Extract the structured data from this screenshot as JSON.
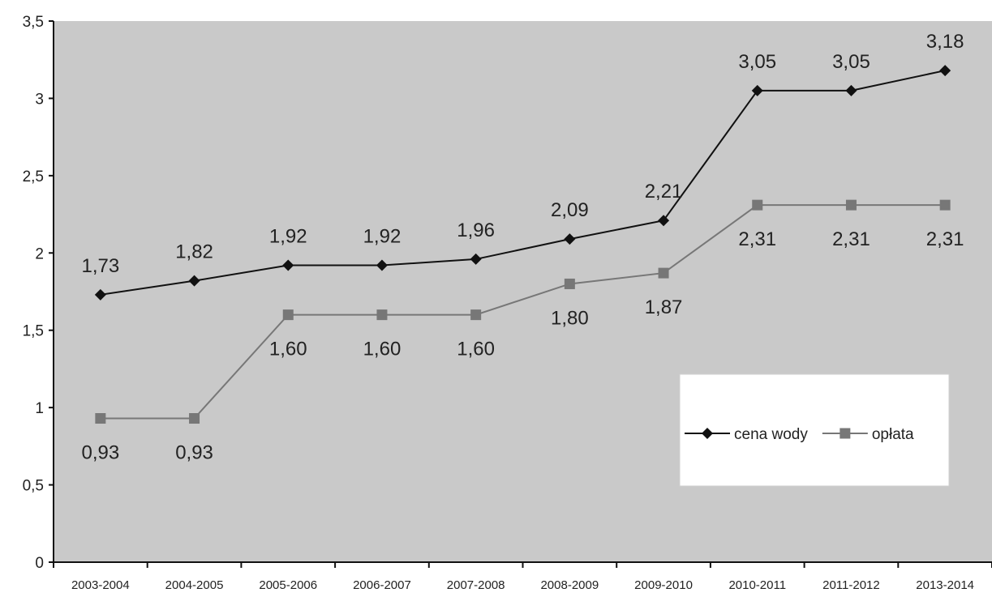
{
  "chart_data": {
    "type": "line",
    "title": "",
    "xlabel": "",
    "ylabel": "",
    "categories": [
      "2003-2004",
      "2004-2005",
      "2005-2006",
      "2006-2007",
      "2007-2008",
      "2008-2009",
      "2009-2010",
      "2010-2011",
      "2011-2012",
      "2013-2014"
    ],
    "ylim": [
      0,
      3.5
    ],
    "yticks": [
      0,
      0.5,
      1,
      1.5,
      2,
      2.5,
      3,
      3.5
    ],
    "ytick_labels": [
      "0",
      "0,5",
      "1",
      "1,5",
      "2",
      "2,5",
      "3",
      "3,5"
    ],
    "grid": false,
    "legend_position": "lower-right",
    "series": [
      {
        "name": "cena wody",
        "marker": "diamond",
        "color": "#111111",
        "values": [
          1.73,
          1.82,
          1.92,
          1.92,
          1.96,
          2.09,
          2.21,
          3.05,
          3.05,
          3.18
        ],
        "labels": [
          "1,73",
          "1,82",
          "1,92",
          "1,92",
          "1,96",
          "2,09",
          "2,21",
          "3,05",
          "3,05",
          "3,18"
        ],
        "label_position": "above"
      },
      {
        "name": "opłata",
        "marker": "square",
        "color": "#777777",
        "values": [
          0.93,
          0.93,
          1.6,
          1.6,
          1.6,
          1.8,
          1.87,
          2.31,
          2.31,
          2.31
        ],
        "labels": [
          "0,93",
          "0,93",
          "1,60",
          "1,60",
          "1,60",
          "1,80",
          "1,87",
          "2,31",
          "2,31",
          "2,31"
        ],
        "label_position": "below"
      }
    ],
    "colors": {
      "plot_background": "#c9c9c9",
      "axis": "#111111"
    }
  }
}
